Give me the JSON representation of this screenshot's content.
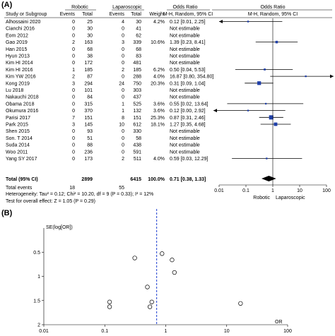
{
  "panel_a_label": "(A)",
  "panel_b_label": "(B)",
  "forest": {
    "group_header_robotic": "Robotic",
    "group_header_laparoscopic": "Laparoscopic",
    "col_study": "Study or Subgroup",
    "col_events_1": "Events",
    "col_total_1": "Total",
    "col_events_2": "Events",
    "col_total_2": "Total",
    "col_weight": "Weight",
    "col_or_header": "Odds Ratio",
    "col_or_sub": "M-H, Random, 95% CI",
    "plot_header": "Odds Ratio",
    "plot_sub": "M-H, Random, 95% CI",
    "total_row": {
      "label": "Total (95% CI)",
      "total1": "2899",
      "total2": "6415",
      "weight": "100.0%",
      "ci": "0.71 [0.38, 1.33]"
    },
    "events_row": {
      "label": "Total events",
      "events1": "18",
      "events2": "55"
    },
    "heterogeneity": "Heterogeneity: Tau² = 0.12; Chi² = 10.20, df = 9 (P = 0.33); I² = 12%",
    "overall_effect": "Test for overall effect: Z = 1.05 (P = 0.29)",
    "axis_ticks": [
      "0.01",
      "0.1",
      "1",
      "10",
      "100"
    ],
    "favours_left": "Robotic",
    "favours_right": "Laparoscopic",
    "colors": {
      "square": "#1f3fa8",
      "diamond": "#000000",
      "line": "#000000"
    }
  },
  "funnel": {
    "y_axis_label": "SE(log[OR])",
    "x_axis_label": "OR",
    "y_ticks": [
      "0",
      "0.5",
      "1",
      "1.5",
      "2"
    ],
    "x_ticks": [
      "0.01",
      "0.1",
      "1",
      "10",
      "100"
    ],
    "pooled_line_color": "#1f3fd0"
  },
  "chart_data": [
    {
      "type": "forest",
      "studies": [
        {
          "name": "Alhossaini 2020",
          "e1": "0",
          "t1": "25",
          "e2": "4",
          "t2": "30",
          "weight": "4.2%",
          "ci": "0.12 [0.01, 2.25]",
          "or": 0.12,
          "lo": 0.01,
          "hi": 2.25,
          "arrow_left": true,
          "arrow_right": false
        },
        {
          "name": "Cianchi 2016",
          "e1": "0",
          "t1": "30",
          "e2": "0",
          "t2": "41",
          "weight": "",
          "ci": "Not estimable",
          "or": null
        },
        {
          "name": "Eom 2012",
          "e1": "0",
          "t1": "30",
          "e2": "0",
          "t2": "62",
          "weight": "",
          "ci": "Not estimable",
          "or": null
        },
        {
          "name": "Gao 2019",
          "e1": "2",
          "t1": "163",
          "e2": "3",
          "t2": "339",
          "weight": "10.6%",
          "ci": "1.39 [0.23, 8.41]",
          "or": 1.39,
          "lo": 0.23,
          "hi": 8.41
        },
        {
          "name": "Han 2015",
          "e1": "0",
          "t1": "68",
          "e2": "0",
          "t2": "68",
          "weight": "",
          "ci": "Not estimable",
          "or": null
        },
        {
          "name": "Hyun 2013",
          "e1": "0",
          "t1": "38",
          "e2": "0",
          "t2": "83",
          "weight": "",
          "ci": "Not estimable",
          "or": null
        },
        {
          "name": "Kim HI 2014",
          "e1": "0",
          "t1": "172",
          "e2": "0",
          "t2": "481",
          "weight": "",
          "ci": "Not estimable",
          "or": null
        },
        {
          "name": "Kim HI 2016",
          "e1": "1",
          "t1": "185",
          "e2": "2",
          "t2": "185",
          "weight": "6.2%",
          "ci": "0.50 [0.04, 5.53]",
          "or": 0.5,
          "lo": 0.04,
          "hi": 5.53
        },
        {
          "name": "Kim YW 2016",
          "e1": "2",
          "t1": "87",
          "e2": "0",
          "t2": "288",
          "weight": "4.0%",
          "ci": "16.87 [0.80, 354.80]",
          "or": 16.87,
          "lo": 0.8,
          "hi": 354.8,
          "arrow_left": false,
          "arrow_right": true
        },
        {
          "name": "Kong 2019",
          "e1": "3",
          "t1": "294",
          "e2": "24",
          "t2": "750",
          "weight": "20.3%",
          "ci": "0.31 [0.09, 1.04]",
          "or": 0.31,
          "lo": 0.09,
          "hi": 1.04
        },
        {
          "name": "Lu 2018",
          "e1": "0",
          "t1": "101",
          "e2": "0",
          "t2": "303",
          "weight": "",
          "ci": "Not estimable",
          "or": null
        },
        {
          "name": "Nakauchi 2018",
          "e1": "0",
          "t1": "84",
          "e2": "0",
          "t2": "437",
          "weight": "",
          "ci": "Not estimable",
          "or": null
        },
        {
          "name": "Obama 2018",
          "e1": "0",
          "t1": "315",
          "e2": "1",
          "t2": "525",
          "weight": "3.6%",
          "ci": "0.55 [0.02, 13.64]",
          "or": 0.55,
          "lo": 0.02,
          "hi": 13.64
        },
        {
          "name": "Okumura 2016",
          "e1": "0",
          "t1": "370",
          "e2": "1",
          "t2": "132",
          "weight": "3.6%",
          "ci": "0.12 [0.00, 2.92]",
          "or": 0.12,
          "lo": 0.005,
          "hi": 2.92,
          "arrow_left": true,
          "arrow_right": false
        },
        {
          "name": "Parisi 2017",
          "e1": "7",
          "t1": "151",
          "e2": "8",
          "t2": "151",
          "weight": "25.3%",
          "ci": "0.87 [0.31, 2.46]",
          "or": 0.87,
          "lo": 0.31,
          "hi": 2.46
        },
        {
          "name": "Park 2015",
          "e1": "3",
          "t1": "145",
          "e2": "10",
          "t2": "612",
          "weight": "18.1%",
          "ci": "1.27 [0.35, 4.68]",
          "or": 1.27,
          "lo": 0.35,
          "hi": 4.68
        },
        {
          "name": "Shen 2015",
          "e1": "0",
          "t1": "93",
          "e2": "0",
          "t2": "330",
          "weight": "",
          "ci": "Not estimable",
          "or": null
        },
        {
          "name": "Son. T 2014",
          "e1": "0",
          "t1": "51",
          "e2": "0",
          "t2": "58",
          "weight": "",
          "ci": "Not estimable",
          "or": null
        },
        {
          "name": "Suda 2014",
          "e1": "0",
          "t1": "88",
          "e2": "0",
          "t2": "438",
          "weight": "",
          "ci": "Not estimable",
          "or": null
        },
        {
          "name": "Woo 2011",
          "e1": "0",
          "t1": "236",
          "e2": "0",
          "t2": "591",
          "weight": "",
          "ci": "Not estimable",
          "or": null
        },
        {
          "name": "Yang SY 2017",
          "e1": "0",
          "t1": "173",
          "e2": "2",
          "t2": "511",
          "weight": "4.0%",
          "ci": "0.59 [0.03, 12.29]",
          "or": 0.59,
          "lo": 0.03,
          "hi": 12.29
        }
      ],
      "pooled": {
        "or": 0.71,
        "lo": 0.38,
        "hi": 1.33
      },
      "x_scale": "log",
      "xlim": [
        0.01,
        100
      ]
    },
    {
      "type": "scatter",
      "x_scale": "log",
      "xlim": [
        0.01,
        100
      ],
      "ylim": [
        0,
        2
      ],
      "y_reversed": true,
      "pooled_or": 0.71,
      "points": [
        {
          "x": 0.31,
          "y": 0.62
        },
        {
          "x": 0.87,
          "y": 0.53
        },
        {
          "x": 1.27,
          "y": 0.66
        },
        {
          "x": 1.39,
          "y": 0.92
        },
        {
          "x": 0.5,
          "y": 1.22
        },
        {
          "x": 16.87,
          "y": 1.56
        },
        {
          "x": 0.12,
          "y": 1.53
        },
        {
          "x": 0.12,
          "y": 1.63
        },
        {
          "x": 0.55,
          "y": 1.63
        },
        {
          "x": 0.59,
          "y": 1.53
        }
      ]
    }
  ]
}
